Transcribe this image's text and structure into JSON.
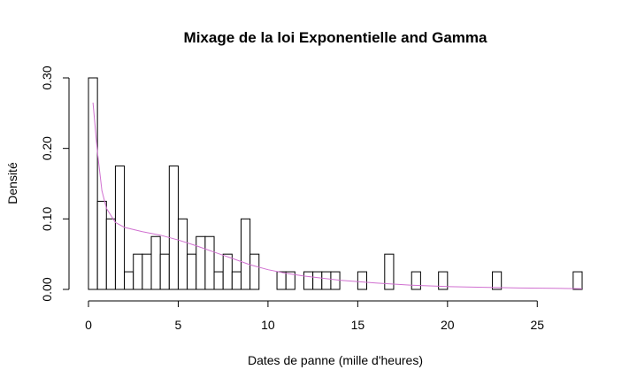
{
  "chart_data": {
    "type": "bar",
    "title": "Mixage de la loi Exponentielle and Gamma",
    "xlabel": "Dates de panne (mille d'heures)",
    "ylabel": "Densité",
    "xlim": [
      0,
      27.5
    ],
    "ylim": [
      0,
      0.3
    ],
    "x_ticks": [
      0,
      5,
      10,
      15,
      20,
      25
    ],
    "x_tick_labels": [
      "0",
      "5",
      "10",
      "15",
      "20",
      "25"
    ],
    "y_ticks": [
      0,
      0.1,
      0.2,
      0.3
    ],
    "y_tick_labels": [
      "0.00",
      "0.10",
      "0.20",
      "0.30"
    ],
    "bin_width": 0.5,
    "bins_start": 0,
    "values": [
      0.3,
      0.125,
      0.1,
      0.175,
      0.025,
      0.05,
      0.05,
      0.075,
      0.05,
      0.175,
      0.1,
      0.05,
      0.075,
      0.075,
      0.025,
      0.05,
      0.025,
      0.1,
      0.05,
      0,
      0,
      0.025,
      0.025,
      0,
      0.025,
      0.025,
      0.025,
      0.025,
      0,
      0,
      0.025,
      0,
      0,
      0.05,
      0,
      0,
      0.025,
      0,
      0,
      0.025,
      0,
      0,
      0,
      0,
      0,
      0.025,
      0,
      0,
      0,
      0,
      0,
      0,
      0,
      0,
      0.025
    ],
    "density_curve": {
      "x": [
        0.25,
        0.5,
        0.75,
        1,
        1.5,
        2,
        3,
        4,
        5,
        6,
        7,
        8,
        9,
        10,
        11,
        12,
        14,
        16,
        18,
        20,
        22,
        24,
        26,
        27.5
      ],
      "y": [
        0.265,
        0.195,
        0.14,
        0.115,
        0.095,
        0.088,
        0.082,
        0.077,
        0.07,
        0.062,
        0.053,
        0.044,
        0.035,
        0.028,
        0.023,
        0.019,
        0.013,
        0.009,
        0.006,
        0.004,
        0.003,
        0.002,
        0.0015,
        0.001
      ]
    },
    "colors": {
      "bars_fill": "#ffffff",
      "bars_stroke": "#000000",
      "curve": "#d070d0"
    },
    "grid": false,
    "legend": "none"
  }
}
